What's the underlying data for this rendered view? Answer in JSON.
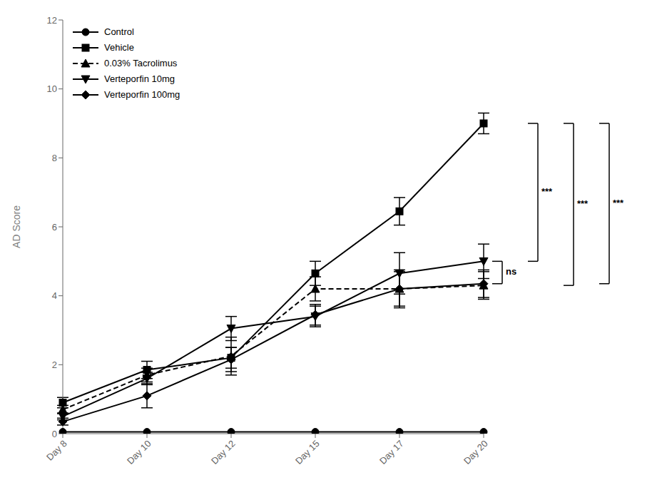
{
  "chart_data": {
    "type": "line",
    "categories": [
      "Day 8",
      "Day 10",
      "Day 12",
      "Day 15",
      "Day 17",
      "Day 20"
    ],
    "series": [
      {
        "name": "Control",
        "color": "#000000",
        "values": [
          0.05,
          0.05,
          0.05,
          0.05,
          0.05,
          0.05
        ],
        "yerr": [
          0.0,
          0.0,
          0.0,
          0.0,
          0.0,
          0.0
        ],
        "marker": "circle",
        "line_style": "solid"
      },
      {
        "name": "Vehicle",
        "color": "#000000",
        "values": [
          0.9,
          1.85,
          2.2,
          4.65,
          6.45,
          9.0
        ],
        "yerr": [
          0.15,
          0.25,
          0.3,
          0.35,
          0.4,
          0.3
        ],
        "marker": "square",
        "line_style": "solid"
      },
      {
        "name": "0.03% Tacrolimus",
        "color": "#000000",
        "values": [
          0.7,
          1.7,
          2.25,
          4.2,
          4.2,
          4.3
        ],
        "yerr": [
          0.12,
          0.2,
          0.55,
          0.35,
          0.55,
          0.4
        ],
        "marker": "triangle",
        "line_style": "dashed"
      },
      {
        "name": "Verteporfin 10mg",
        "color": "#000000",
        "values": [
          0.5,
          1.6,
          3.05,
          3.4,
          4.65,
          5.0
        ],
        "yerr": [
          0.1,
          0.18,
          0.35,
          0.3,
          0.6,
          0.5
        ],
        "marker": "triangle-down",
        "line_style": "solid"
      },
      {
        "name": "Verteporfin 100mg",
        "color": "#000000",
        "values": [
          0.35,
          1.1,
          2.15,
          3.45,
          4.2,
          4.35
        ],
        "yerr": [
          0.1,
          0.35,
          0.35,
          0.3,
          0.5,
          0.4
        ],
        "marker": "diamond",
        "line_style": "solid"
      }
    ],
    "ylabel": "AD Score",
    "ylim": [
      0,
      12
    ],
    "yticks": [
      0,
      2,
      4,
      6,
      8,
      10,
      12
    ],
    "legend": "upper left",
    "grid": false,
    "annotations": [
      {
        "text": "ns",
        "category": "Day 20",
        "between": [
          "Verteporfin 10mg",
          "Verteporfin 100mg"
        ]
      },
      {
        "text": "***",
        "category": "Day 20",
        "between": [
          "Vehicle",
          "Verteporfin 10mg"
        ]
      },
      {
        "text": "***",
        "category": "Day 20",
        "between": [
          "Vehicle",
          "0.03% Tacrolimus"
        ]
      },
      {
        "text": "***",
        "category": "Day 20",
        "between": [
          "Vehicle",
          "Verteporfin 100mg"
        ]
      }
    ]
  }
}
